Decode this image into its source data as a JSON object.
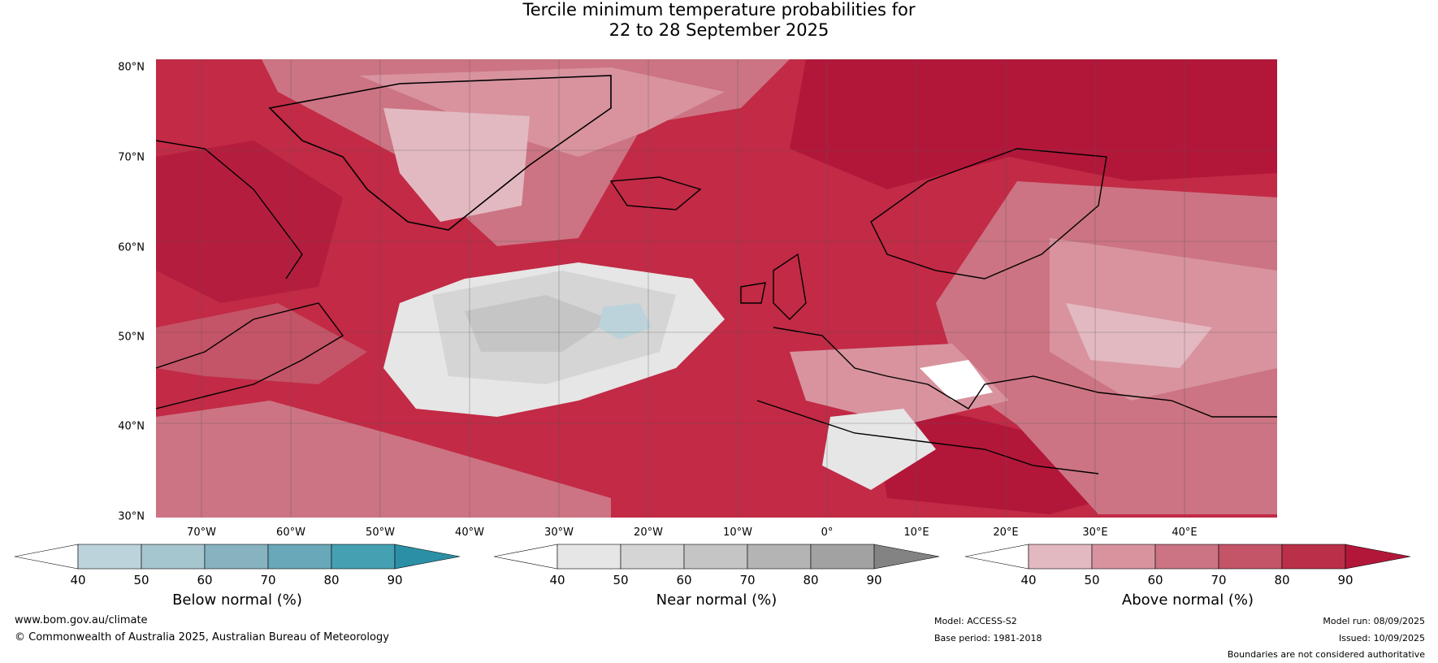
{
  "title": {
    "line1": "Tercile minimum temperature probabilities for",
    "line2": "22 to 28 September 2025"
  },
  "lat_labels": [
    "80°N",
    "70°N",
    "60°N",
    "50°N",
    "40°N",
    "30°N"
  ],
  "lon_labels": [
    "70°W",
    "60°W",
    "50°W",
    "40°W",
    "30°W",
    "20°W",
    "10°W",
    "0°",
    "10°E",
    "20°E",
    "30°E",
    "40°E"
  ],
  "colorbars": [
    {
      "label": "Below normal (%)",
      "ticks": [
        "40",
        "50",
        "60",
        "70",
        "80",
        "90"
      ],
      "colors": [
        "#ffffff",
        "#bcd3db",
        "#a5c5cf",
        "#87b3c1",
        "#68a8b8",
        "#45a0b2",
        "#2b90a5"
      ]
    },
    {
      "label": "Near normal (%)",
      "ticks": [
        "40",
        "50",
        "60",
        "70",
        "80",
        "90"
      ],
      "colors": [
        "#ffffff",
        "#e6e6e6",
        "#d5d5d5",
        "#c5c5c5",
        "#b4b4b4",
        "#a2a2a2",
        "#838383"
      ]
    },
    {
      "label": "Above normal (%)",
      "ticks": [
        "40",
        "50",
        "60",
        "70",
        "80",
        "90"
      ],
      "colors": [
        "#ffffff",
        "#e3b9c1",
        "#d8939f",
        "#cc7483",
        "#c45467",
        "#ba3048",
        "#b2173a"
      ]
    }
  ],
  "footer": {
    "url": "www.bom.gov.au/climate",
    "copyright": "© Commonwealth of Australia 2025, Australian Bureau of Meteorology",
    "model": "Model: ACCESS-S2",
    "base_period": "Base period: 1981-2018",
    "model_run": "Model run: 08/09/2025",
    "issued": "Issued: 10/09/2025",
    "disclaimer": "Boundaries are not considered authoritative"
  }
}
